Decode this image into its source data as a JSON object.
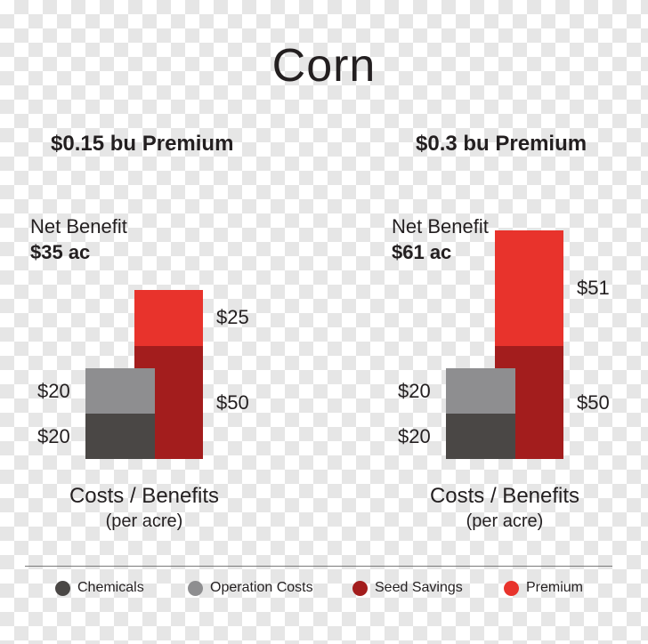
{
  "title": "Corn",
  "colors": {
    "chemicals": "#4a4745",
    "operation_costs": "#8e8e90",
    "seed_savings": "#a31d1d",
    "premium": "#e8332c"
  },
  "chart_data": [
    {
      "type": "bar",
      "title": "$0.15 bu Premium",
      "net_benefit_label": "Net Benefit",
      "net_benefit_value": "$35 ac",
      "xlabel": "Costs / Benefits",
      "xlabel_sub": "(per acre)",
      "costs": {
        "chemicals": 20,
        "operation_costs": 20
      },
      "benefits": {
        "seed_savings": 50,
        "premium": 25
      },
      "labels": {
        "chemicals": "$20",
        "operation_costs": "$20",
        "seed_savings": "$50",
        "premium": "$25"
      }
    },
    {
      "type": "bar",
      "title": "$0.3 bu Premium",
      "net_benefit_label": "Net Benefit",
      "net_benefit_value": "$61 ac",
      "xlabel": "Costs / Benefits",
      "xlabel_sub": "(per acre)",
      "costs": {
        "chemicals": 20,
        "operation_costs": 20
      },
      "benefits": {
        "seed_savings": 50,
        "premium": 51
      },
      "labels": {
        "chemicals": "$20",
        "operation_costs": "$20",
        "seed_savings": "$50",
        "premium": "$51"
      }
    }
  ],
  "legend": [
    {
      "key": "chemicals",
      "label": "Chemicals"
    },
    {
      "key": "operation_costs",
      "label": "Operation Costs"
    },
    {
      "key": "seed_savings",
      "label": "Seed Savings"
    },
    {
      "key": "premium",
      "label": "Premium"
    }
  ]
}
